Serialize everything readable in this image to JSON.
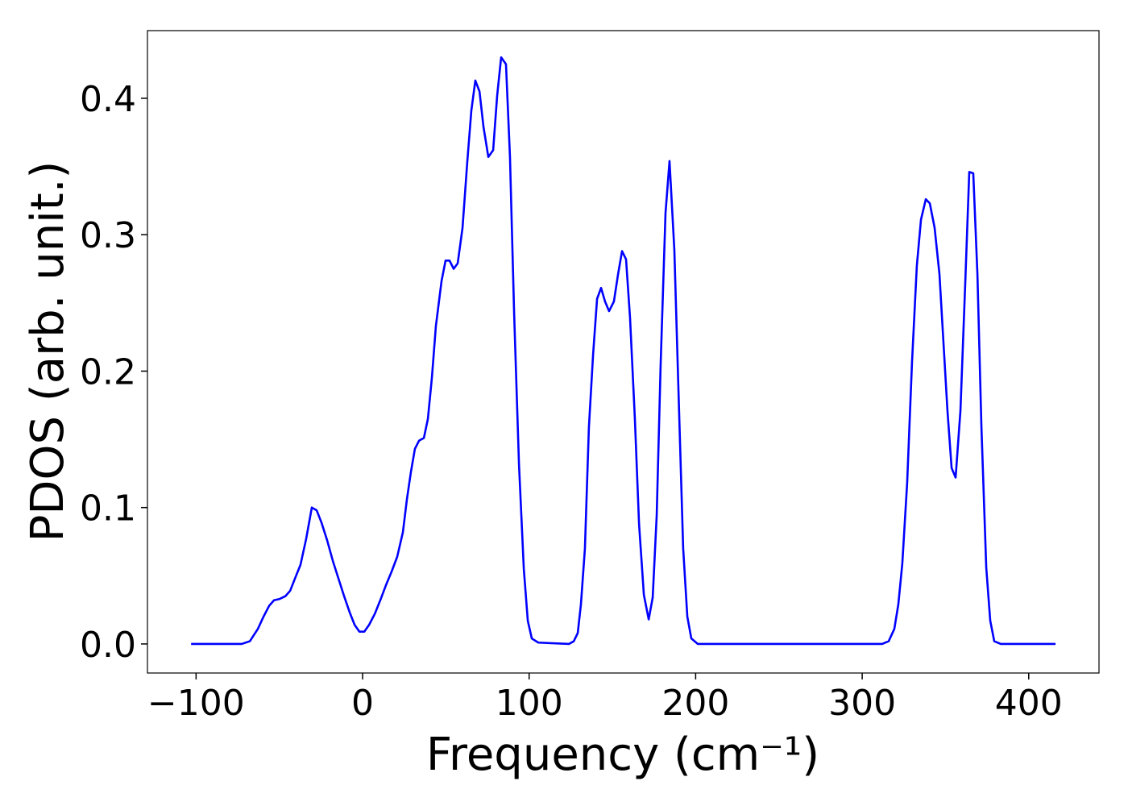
{
  "chart_data": {
    "type": "line",
    "xlabel": "Frequency (cm⁻¹)",
    "ylabel": "PDOS (arb. unit.)",
    "color": "#0000ff",
    "xlim": [
      -129.2,
      442.2
    ],
    "ylim": [
      -0.0213,
      0.4496
    ],
    "xticks": [
      {
        "value": -100,
        "label": "−100"
      },
      0,
      100,
      200,
      300,
      400
    ],
    "yticks": [
      {
        "value": 0,
        "label": "0.0"
      },
      0.1,
      0.2,
      0.3,
      0.4
    ],
    "x": [
      -103.0,
      -72.6,
      -67.7,
      -62.9,
      -59.5,
      -56.1,
      -53.2,
      -49.8,
      -46.4,
      -43.5,
      -40.6,
      -37.3,
      -33.9,
      -30.5,
      -27.6,
      -24.7,
      -21.3,
      -17.9,
      -14.5,
      -11.1,
      -7.7,
      -4.8,
      -1.9,
      1.0,
      3.9,
      7.3,
      10.6,
      14.0,
      17.4,
      20.8,
      24.2,
      26.6,
      29.0,
      31.4,
      33.9,
      36.8,
      39.2,
      41.6,
      44.0,
      47.4,
      49.8,
      52.2,
      54.7,
      57.1,
      60.0,
      62.9,
      65.3,
      67.7,
      70.2,
      72.6,
      75.5,
      78.4,
      80.8,
      83.2,
      86.1,
      88.5,
      91.0,
      93.9,
      96.8,
      99.2,
      101.6,
      105.5,
      123.9,
      126.8,
      129.2,
      131.1,
      133.5,
      135.9,
      138.4,
      140.8,
      143.2,
      145.6,
      148.0,
      150.9,
      153.4,
      155.8,
      158.2,
      160.6,
      163.5,
      166.0,
      168.9,
      171.8,
      174.2,
      176.6,
      179.0,
      181.9,
      184.3,
      187.2,
      189.6,
      192.5,
      195.0,
      197.4,
      201.3,
      312.0,
      315.9,
      319.3,
      321.7,
      324.1,
      327.0,
      329.9,
      332.8,
      335.3,
      338.2,
      340.6,
      343.5,
      346.4,
      348.8,
      351.2,
      353.7,
      356.1,
      359.0,
      361.9,
      364.3,
      366.7,
      369.2,
      371.6,
      374.5,
      376.9,
      379.3,
      383.2,
      416.1
    ],
    "values": [
      0,
      0,
      0.002,
      0.011,
      0.02,
      0.028,
      0.032,
      0.033,
      0.035,
      0.039,
      0.048,
      0.058,
      0.077,
      0.1,
      0.098,
      0.089,
      0.076,
      0.061,
      0.048,
      0.035,
      0.023,
      0.014,
      0.009,
      0.009,
      0.014,
      0.022,
      0.032,
      0.043,
      0.053,
      0.064,
      0.082,
      0.106,
      0.126,
      0.143,
      0.149,
      0.151,
      0.165,
      0.195,
      0.233,
      0.266,
      0.281,
      0.281,
      0.275,
      0.279,
      0.305,
      0.354,
      0.391,
      0.413,
      0.405,
      0.379,
      0.357,
      0.362,
      0.402,
      0.43,
      0.425,
      0.357,
      0.242,
      0.132,
      0.055,
      0.017,
      0.004,
      0.001,
      0,
      0.002,
      0.008,
      0.029,
      0.07,
      0.159,
      0.212,
      0.253,
      0.261,
      0.251,
      0.244,
      0.251,
      0.271,
      0.288,
      0.282,
      0.239,
      0.165,
      0.088,
      0.036,
      0.018,
      0.034,
      0.094,
      0.206,
      0.316,
      0.354,
      0.289,
      0.189,
      0.07,
      0.02,
      0.004,
      0,
      0,
      0.002,
      0.011,
      0.029,
      0.059,
      0.118,
      0.206,
      0.277,
      0.311,
      0.326,
      0.323,
      0.305,
      0.271,
      0.221,
      0.171,
      0.129,
      0.122,
      0.171,
      0.265,
      0.346,
      0.345,
      0.271,
      0.159,
      0.056,
      0.017,
      0.002,
      0,
      0
    ]
  }
}
